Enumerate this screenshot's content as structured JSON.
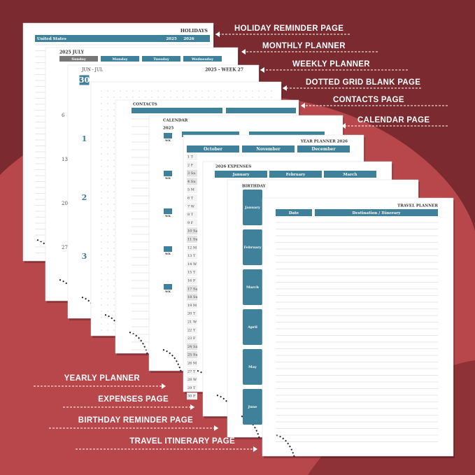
{
  "callouts_right": [
    "HOLIDAY REMINDER PAGE",
    "MONTHLY PLANNER",
    "WEEKLY PLANNER",
    "DOTTED GRID BLANK PAGE",
    "CONTACTS PAGE",
    "CALENDAR PAGE"
  ],
  "callouts_left": [
    "YEARLY PLANNER",
    "EXPENSES PAGE",
    "BIRTHDAY REMINDER PAGE",
    "TRAVEL ITINERARY PAGE"
  ],
  "pages": {
    "holidays": {
      "title": "HOLIDAYS",
      "country": "United States",
      "columns": [
        "2025",
        "2026"
      ]
    },
    "monthly": {
      "title": "2025 JULY",
      "days": [
        "Sunday",
        "Monday",
        "Tuesday",
        "Wednesday"
      ],
      "weeks": [
        "6",
        "13",
        "20",
        "27"
      ]
    },
    "weekly": {
      "title": "JUN - JUL",
      "week": "2025 - WEEK 27",
      "dates": [
        "30",
        "1",
        "2",
        "3"
      ]
    },
    "contacts": {
      "title": "CONTACTS"
    },
    "calendar": {
      "title": "CALENDAR",
      "year": "2025",
      "week_label": "WK"
    },
    "yearly": {
      "title": "YEAR PLANNER 2026",
      "months": [
        "October",
        "November",
        "December"
      ],
      "days": [
        "1 T",
        "2 F",
        "3 Sa",
        "4 Su",
        "5 M",
        "6 T",
        "7 W",
        "8 T",
        "9 F",
        "10 Sa",
        "11 Su",
        "12 M",
        "13 T",
        "14 W",
        "15 T",
        "16 F",
        "17 Sa",
        "18 Su",
        "19 M",
        "20 T",
        "21 W",
        "22 T",
        "23 F",
        "24 Sa",
        "25 Su",
        "26 M",
        "27 T",
        "28 W",
        "29 T",
        "30 F"
      ]
    },
    "expenses": {
      "title": "2026 EXPENSES",
      "months": [
        "January",
        "February",
        "March"
      ]
    },
    "birthday": {
      "title": "BIRTHDAY",
      "months": [
        "January",
        "February",
        "March",
        "April",
        "May",
        "June"
      ]
    },
    "travel": {
      "title": "TRAVEL PLANNER",
      "columns": [
        "Date",
        "Destination / Itinerary"
      ]
    }
  }
}
